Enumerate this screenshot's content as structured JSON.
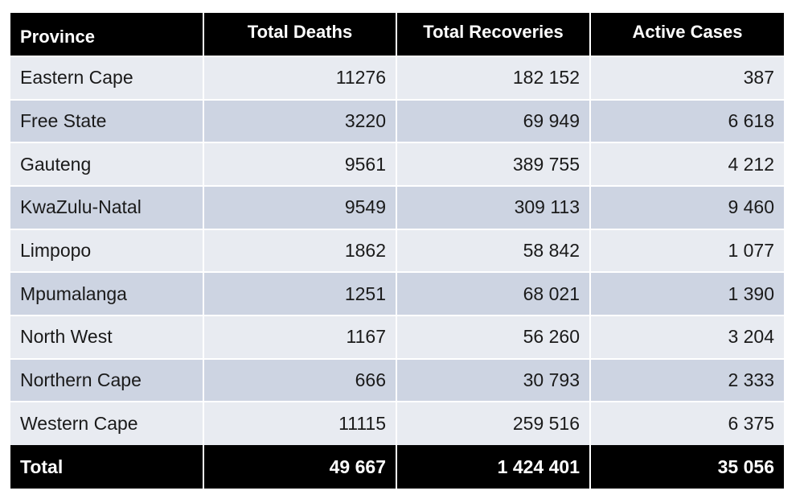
{
  "chart_data": {
    "type": "table",
    "columns": [
      "Province",
      "Total Deaths",
      "Total Recoveries",
      "Active Cases"
    ],
    "rows": [
      [
        "Eastern Cape",
        "11276",
        "182 152",
        "387"
      ],
      [
        "Free State",
        "3220",
        "69 949",
        "6 618"
      ],
      [
        "Gauteng",
        "9561",
        "389 755",
        "4 212"
      ],
      [
        "KwaZulu-Natal",
        "9549",
        "309 113",
        "9 460"
      ],
      [
        "Limpopo",
        "1862",
        "58 842",
        "1 077"
      ],
      [
        "Mpumalanga",
        "1251",
        "68 021",
        "1 390"
      ],
      [
        "North West",
        "1167",
        "56 260",
        "3 204"
      ],
      [
        "Northern Cape",
        "666",
        "30 793",
        "2 333"
      ],
      [
        "Western Cape",
        "11115",
        "259 516",
        "6 375"
      ]
    ],
    "total": [
      "Total",
      "49 667",
      "1 424 401",
      "35 056"
    ],
    "colors": {
      "header_bg": "#000000",
      "header_text": "#ffffff",
      "row_light": "#e8ebf1",
      "row_dark": "#cdd4e2"
    }
  }
}
